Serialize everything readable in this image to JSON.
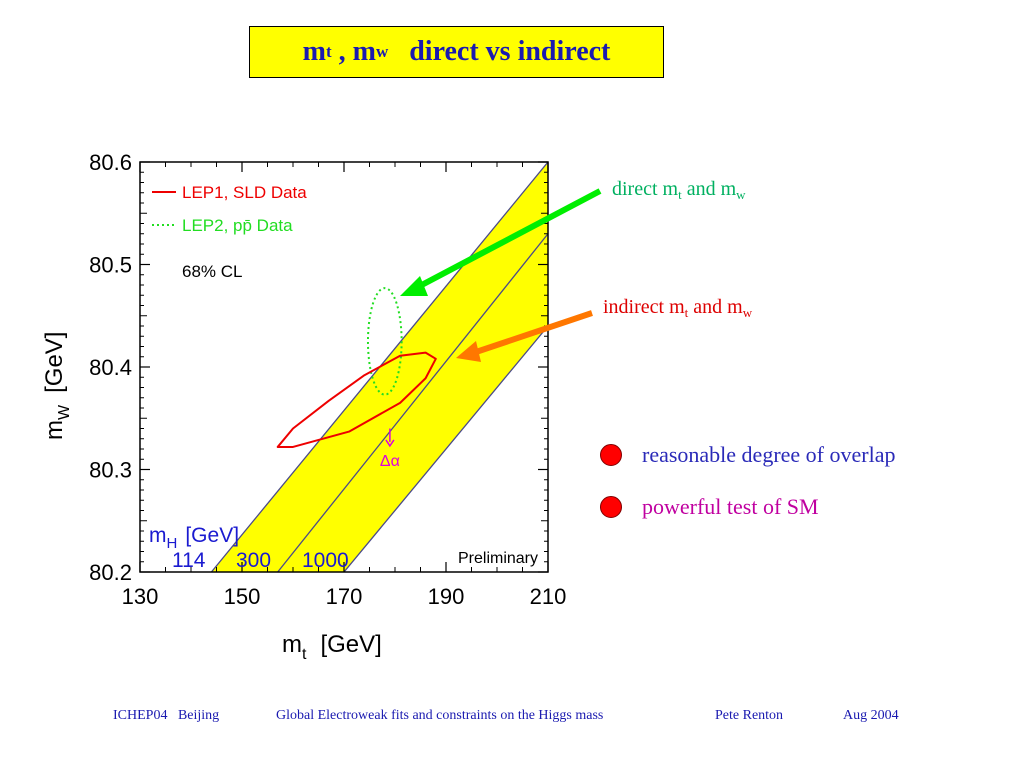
{
  "slide": {
    "title": {
      "main": "m",
      "sub1": "t",
      "sep": " , m",
      "sub2": "w",
      "rest": "   direct vs indirect"
    },
    "annotations": {
      "direct": {
        "pre": "direct m",
        "sub1": "t",
        "mid": " and m",
        "sub2": "w"
      },
      "indirect": {
        "pre": "indirect m",
        "sub1": "t",
        "mid": " and m",
        "sub2": "w"
      }
    },
    "bullets": [
      {
        "text": "reasonable degree of overlap"
      },
      {
        "text": "powerful test of SM"
      }
    ],
    "footer": {
      "conf": "ICHEP04   Beijing",
      "talk": "Global Electroweak fits and constraints on the Higgs mass",
      "author": "Pete Renton",
      "date": "Aug 2004"
    }
  },
  "chart_data": {
    "type": "scatter",
    "xlabel_main": "m",
    "xlabel_sub": "t",
    "xlabel_unit": "[GeV]",
    "ylabel_main": "m",
    "ylabel_sub": "W",
    "ylabel_unit": "[GeV]",
    "xlim": [
      130,
      210
    ],
    "ylim": [
      80.2,
      80.6
    ],
    "xticks": [
      "130",
      "150",
      "170",
      "190",
      "210"
    ],
    "yticks": [
      "80.2",
      "80.3",
      "80.4",
      "80.5",
      "80.6"
    ],
    "legend": {
      "placement": "top-left",
      "entries": [
        {
          "name": "LEP1, SLD Data",
          "color": "#ee0000",
          "style": "solid"
        },
        {
          "name": "LEP2, pp̄ Data",
          "color": "#22dd22",
          "style": "dotted"
        }
      ],
      "cl_label": "68% CL"
    },
    "mh_label_main": "m",
    "mh_label_sub": "H",
    "mh_label_unit": "[GeV]",
    "mh_values": [
      "114",
      "300",
      "1000"
    ],
    "band": {
      "color": "#ffff00",
      "lines": [
        {
          "mh": "114",
          "points": [
            [
              144,
              80.2
            ],
            [
              210,
              80.6
            ]
          ]
        },
        {
          "mh": "300",
          "points": [
            [
              157,
              80.2
            ],
            [
              210,
              80.53
            ]
          ]
        },
        {
          "mh": "1000",
          "points": [
            [
              170,
              80.2
            ],
            [
              210,
              80.44
            ]
          ]
        }
      ]
    },
    "direct_contour": {
      "color": "#22dd22",
      "center": [
        178,
        80.425
      ],
      "half_width": 3.3,
      "half_height": 0.052
    },
    "indirect_contour": {
      "color": "#ee0000",
      "points": [
        [
          188,
          80.408
        ],
        [
          186,
          80.389
        ],
        [
          181,
          80.365
        ],
        [
          171,
          80.337
        ],
        [
          160,
          80.322
        ],
        [
          157,
          80.322
        ],
        [
          160,
          80.34
        ],
        [
          167,
          80.367
        ],
        [
          174,
          80.392
        ],
        [
          181,
          80.411
        ],
        [
          186,
          80.414
        ],
        [
          188,
          80.408
        ]
      ]
    },
    "delta_alpha": {
      "label": "Δα",
      "color": "#dd00dd",
      "x": 179,
      "y_from": 80.34,
      "y_to": 80.323
    },
    "preliminary_label": "Preliminary"
  },
  "colors": {
    "title_bg": "#ffff00",
    "title_text": "#1a1ab0",
    "direct_arrow": "#00ee00",
    "indirect_arrow": "#ff7700",
    "bullet": "#ff0000"
  }
}
